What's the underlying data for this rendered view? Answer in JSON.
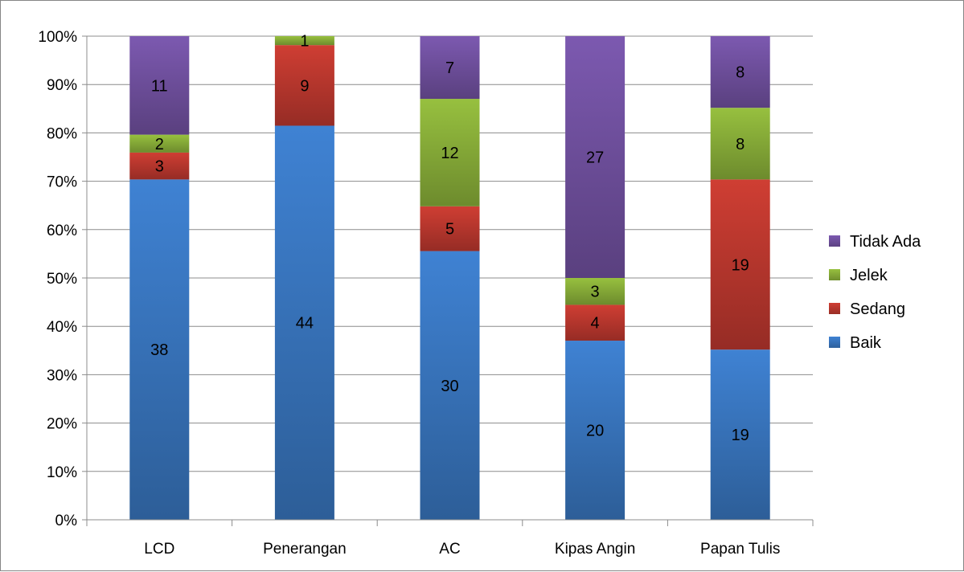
{
  "chart_data": {
    "type": "bar",
    "stacked": true,
    "percent_stacked": true,
    "categories": [
      "LCD",
      "Penerangan",
      "AC",
      "Kipas Angin",
      "Papan Tulis"
    ],
    "series": [
      {
        "name": "Baik",
        "values": [
          38,
          44,
          30,
          20,
          19
        ],
        "color": "#3a78c3"
      },
      {
        "name": "Sedang",
        "values": [
          3,
          9,
          5,
          4,
          19
        ],
        "color": "#c0392f"
      },
      {
        "name": "Jelek",
        "values": [
          2,
          1,
          12,
          3,
          8
        ],
        "color": "#8cb23a"
      },
      {
        "name": "Tidak Ada",
        "values": [
          11,
          0,
          7,
          27,
          8
        ],
        "color": "#7352a3"
      }
    ],
    "y_ticks": [
      "0%",
      "10%",
      "20%",
      "30%",
      "40%",
      "50%",
      "60%",
      "70%",
      "80%",
      "90%",
      "100%"
    ],
    "ylim": [
      0,
      100
    ],
    "grid": true,
    "legend_position": "right",
    "title": "",
    "xlabel": "",
    "ylabel": ""
  }
}
